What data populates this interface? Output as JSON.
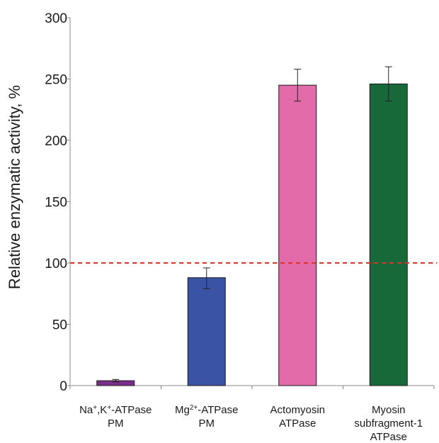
{
  "chart_data": {
    "type": "bar",
    "title": "",
    "xlabel": "",
    "ylabel": "Relative enzymatic activity, %",
    "ylim": [
      0,
      300
    ],
    "yticks": [
      0,
      50,
      100,
      150,
      200,
      250,
      300
    ],
    "ytick_labels": [
      "0",
      "50",
      "100",
      "150",
      "200",
      "250",
      "300"
    ],
    "grid": false,
    "legend": "none",
    "categories": [
      {
        "lines": [
          {
            "parts": [
              {
                "t": "Na"
              },
              {
                "t": "+",
                "sup": true
              },
              {
                "t": ",K"
              },
              {
                "t": "+",
                "sup": true
              },
              {
                "t": "-ATPase"
              }
            ]
          },
          {
            "parts": [
              {
                "t": "PM"
              }
            ]
          }
        ]
      },
      {
        "lines": [
          {
            "parts": [
              {
                "t": "Mg"
              },
              {
                "t": "2+",
                "sup": true
              },
              {
                "t": "-ATPase"
              }
            ]
          },
          {
            "parts": [
              {
                "t": "PM"
              }
            ]
          }
        ]
      },
      {
        "lines": [
          {
            "parts": [
              {
                "t": "Actomyosin"
              }
            ]
          },
          {
            "parts": [
              {
                "t": "ATPase"
              }
            ]
          }
        ]
      },
      {
        "lines": [
          {
            "parts": [
              {
                "t": "Myosin"
              }
            ]
          },
          {
            "parts": [
              {
                "t": "subfragment-1"
              }
            ]
          },
          {
            "parts": [
              {
                "t": "ATPase"
              }
            ]
          }
        ]
      }
    ],
    "values": [
      4,
      88,
      245,
      246
    ],
    "errors": [
      [
        3,
        5
      ],
      [
        79,
        96
      ],
      [
        232,
        258
      ],
      [
        232,
        260
      ]
    ],
    "bar_colors": [
      "#7B2D8B",
      "#3B53A4",
      "#E46BAA",
      "#17693A"
    ],
    "reference_line": {
      "y": 100,
      "style": "dashed",
      "color": "#E0302B"
    }
  }
}
